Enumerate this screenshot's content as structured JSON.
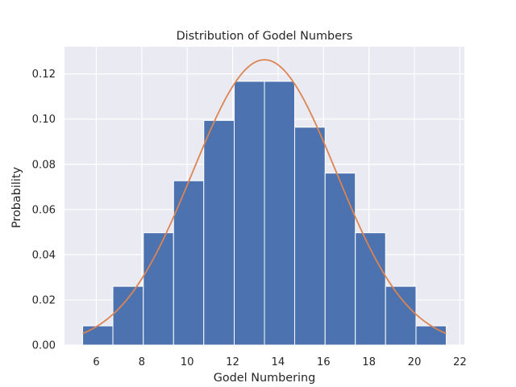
{
  "chart_data": {
    "type": "bar",
    "title": "Distribution of Godel Numbers",
    "xlabel": "Godel Numbering",
    "ylabel": "Probability",
    "xlim": [
      4.6,
      22.2
    ],
    "ylim": [
      0,
      0.132
    ],
    "xticks": [
      6,
      8,
      10,
      12,
      14,
      16,
      18,
      20,
      22
    ],
    "yticks": [
      0.0,
      0.02,
      0.04,
      0.06,
      0.08,
      0.1,
      0.12
    ],
    "ytick_labels": [
      "0.00",
      "0.02",
      "0.04",
      "0.06",
      "0.08",
      "0.10",
      "0.12"
    ],
    "grid": true,
    "histogram": {
      "bin_edges": [
        5.4,
        6.73,
        8.07,
        9.4,
        10.73,
        12.07,
        13.4,
        14.73,
        16.07,
        17.4,
        18.73,
        20.07,
        21.4
      ],
      "values": [
        0.0085,
        0.026,
        0.0497,
        0.0727,
        0.0994,
        0.1167,
        0.1167,
        0.0964,
        0.0761,
        0.0497,
        0.026,
        0.0085
      ]
    },
    "curve": {
      "type": "normal_pdf",
      "mean": 13.4,
      "std": 3.16,
      "x_range": [
        5.4,
        21.4
      ]
    },
    "colors": {
      "background": "#eaeaf2",
      "grid": "#ffffff",
      "bars": "#4c72b0",
      "bar_edge": "#ffffff",
      "curve": "#dd8452"
    }
  }
}
